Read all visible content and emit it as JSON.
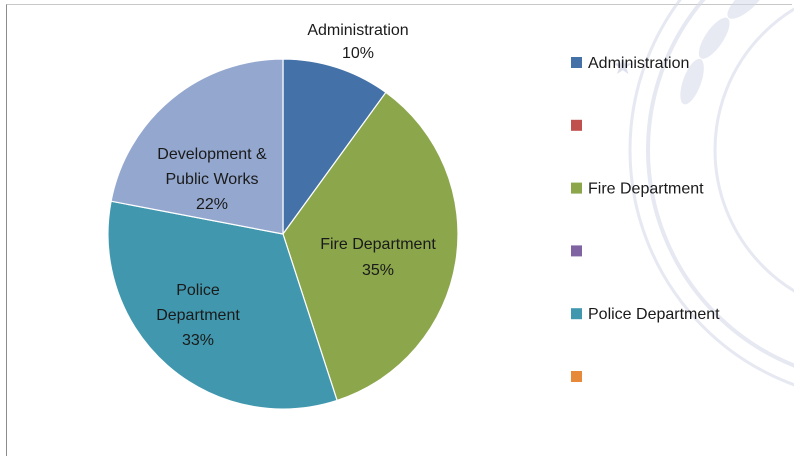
{
  "chart_data": {
    "type": "pie",
    "title": "",
    "slices": [
      {
        "label": "Administration",
        "value": 10,
        "pct_label": "10%",
        "color": "#4472a8"
      },
      {
        "label": "Fire Department",
        "value": 35,
        "pct_label": "35%",
        "color": "#8ca64c"
      },
      {
        "label": "Police Department",
        "value": 33,
        "pct_label": "33%",
        "color": "#4198ae"
      },
      {
        "label": "Development & Public Works",
        "value": 22,
        "pct_label": "22%",
        "color": "#93a7cf"
      }
    ],
    "legend": {
      "position": "right",
      "entries": [
        {
          "label": "Administration",
          "color": "#4472a8"
        },
        {
          "label": "",
          "color": "#c0504d"
        },
        {
          "label": "Fire Department",
          "color": "#8ca64c"
        },
        {
          "label": "",
          "color": "#8064a2"
        },
        {
          "label": "Police Department",
          "color": "#4198ae"
        },
        {
          "label": "",
          "color": "#e68a3a"
        }
      ]
    }
  },
  "labels": {
    "administration": [
      "Administration",
      "10%"
    ],
    "fire": [
      "Fire Department",
      "35%"
    ],
    "police": [
      "Police",
      "Department",
      "33%"
    ],
    "development": [
      "Development &",
      "Public Works",
      "22%"
    ]
  },
  "watermark_color": "#d6d9ea"
}
